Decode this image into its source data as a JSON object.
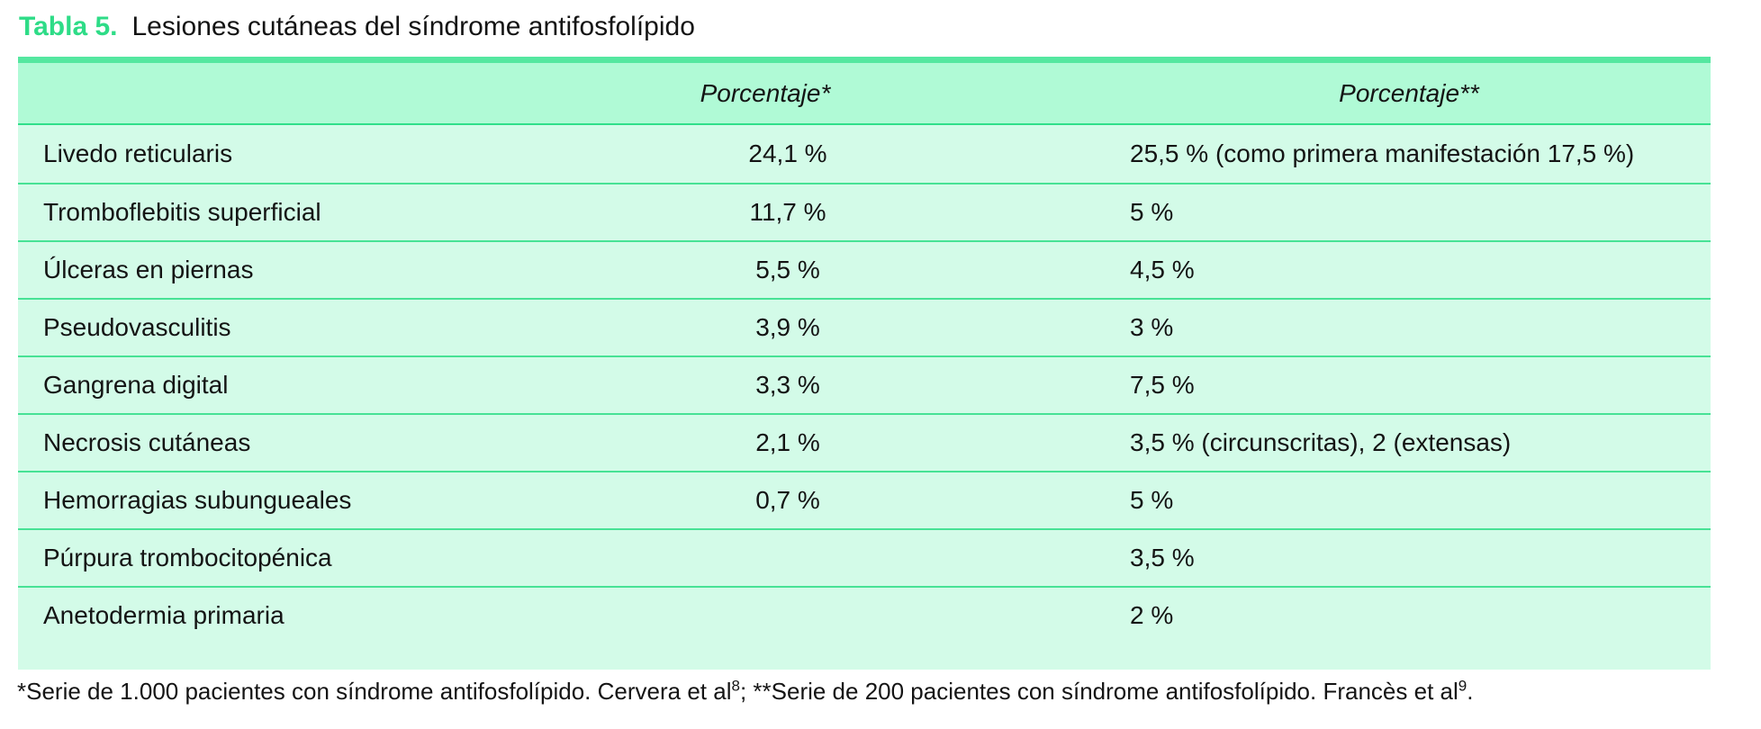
{
  "title": {
    "label": "Tabla 5.",
    "text": "Lesiones cutáneas del síndrome antifosfolípido"
  },
  "table": {
    "headers": {
      "col1": "",
      "col2": "Porcentaje*",
      "col3": "Porcentaje**"
    },
    "rows": [
      {
        "label": "Livedo reticularis",
        "pct1": "24,1 %",
        "pct2": "25,5 % (como primera manifestación 17,5 %)"
      },
      {
        "label": "Tromboflebitis superficial",
        "pct1": "11,7 %",
        "pct2": "5 %"
      },
      {
        "label": "Úlceras en piernas",
        "pct1": "5,5 %",
        "pct2": "4,5 %"
      },
      {
        "label": "Pseudovasculitis",
        "pct1": "3,9 %",
        "pct2": "3 %"
      },
      {
        "label": "Gangrena digital",
        "pct1": "3,3 %",
        "pct2": "7,5 %"
      },
      {
        "label": "Necrosis cutáneas",
        "pct1": "2,1 %",
        "pct2": "3,5 % (circunscritas), 2 (extensas)"
      },
      {
        "label": "Hemorragias subungueales",
        "pct1": "0,7 %",
        "pct2": "5 %"
      },
      {
        "label": "Púrpura trombocitopénica",
        "pct1": "",
        "pct2": "3,5 %"
      },
      {
        "label": "Anetodermia primaria",
        "pct1": "",
        "pct2": "2 %"
      }
    ]
  },
  "footnote": {
    "part1": "*Serie de 1.000 pacientes con síndrome antifosfolípido. Cervera et al",
    "sup1": "8",
    "part2": "; **Serie de 200 pacientes con síndrome antifosfolípido. Francès et al",
    "sup2": "9",
    "part3": "."
  },
  "colors": {
    "title_green": "#2EDC87",
    "top_bar": "#55E7A0",
    "header_bg": "#B0FAD6",
    "body_bg": "#D3FBE8",
    "row_separator": "#47E295"
  }
}
